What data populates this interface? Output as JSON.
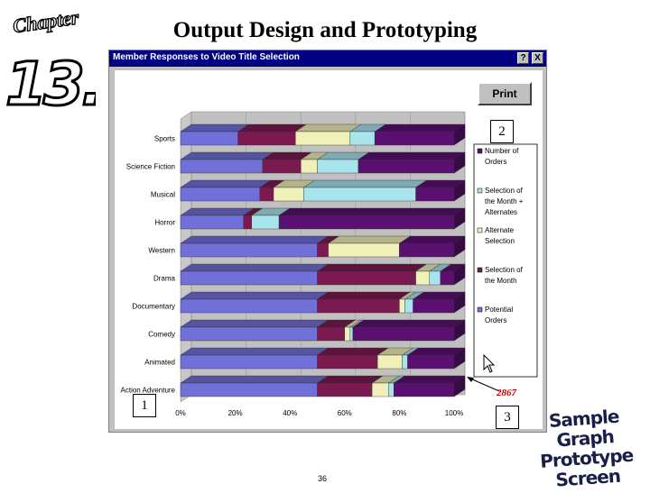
{
  "page_title": "Output Design and Prototyping",
  "chapter": {
    "word": "Chapter",
    "number": "13."
  },
  "window": {
    "title": "Member Responses to Video Title Selection",
    "help_button": "?",
    "close_button": "X",
    "print_button": "Print"
  },
  "callouts": [
    "1",
    "2",
    "3"
  ],
  "screen_label": [
    "Sample Graph",
    "Prototype Screen"
  ],
  "page_number": "36",
  "annotation_value": "2867",
  "colors": {
    "window_title_bar": "#000080",
    "potential_orders": "#7070d8",
    "selection_of_month": "#7a1a50",
    "alternate_selection": "#f0f0b8",
    "selection_plus_alternates": "#a8e4ec",
    "number_of_orders": "#5a1070",
    "depth_darken": "#383878"
  },
  "chart_data": {
    "type": "bar",
    "orientation": "horizontal",
    "stacked": "percent",
    "categories": [
      "Sports",
      "Science Fiction",
      "Musical",
      "Horror",
      "Western",
      "Drama",
      "Documentary",
      "Comedy",
      "Animated",
      "Action Adventure"
    ],
    "series": [
      {
        "name": "Potential Orders",
        "color": "#7070d8",
        "values": [
          21,
          30,
          29,
          23,
          50,
          50,
          50,
          50,
          50,
          50
        ]
      },
      {
        "name": "Selection of the Month",
        "color": "#7a1a50",
        "values": [
          21,
          14,
          5,
          3,
          4,
          36,
          30,
          10,
          22,
          20
        ]
      },
      {
        "name": "Alternate Selection",
        "color": "#f0f0b8",
        "values": [
          20,
          6,
          11,
          0,
          26,
          5,
          2,
          2,
          9,
          6
        ]
      },
      {
        "name": "Selection of the Month + Alternates",
        "color": "#a8e4ec",
        "values": [
          9,
          15,
          41,
          10,
          0,
          4,
          3,
          1,
          2,
          2
        ]
      },
      {
        "name": "Number of Orders",
        "color": "#5a1070",
        "values": [
          29,
          35,
          14,
          64,
          20,
          5,
          15,
          37,
          17,
          22
        ]
      }
    ],
    "xlim": [
      0,
      100
    ],
    "x_ticks": [
      "0%",
      "20%",
      "40%",
      "60%",
      "80%",
      "100%"
    ],
    "legend": [
      "Number of Orders",
      "Selection of the Month + Alternates",
      "Alternate Selection",
      "Selection of the Month",
      "Potential Orders"
    ],
    "legend_position": "right",
    "title": "",
    "xlabel": "",
    "ylabel": ""
  }
}
